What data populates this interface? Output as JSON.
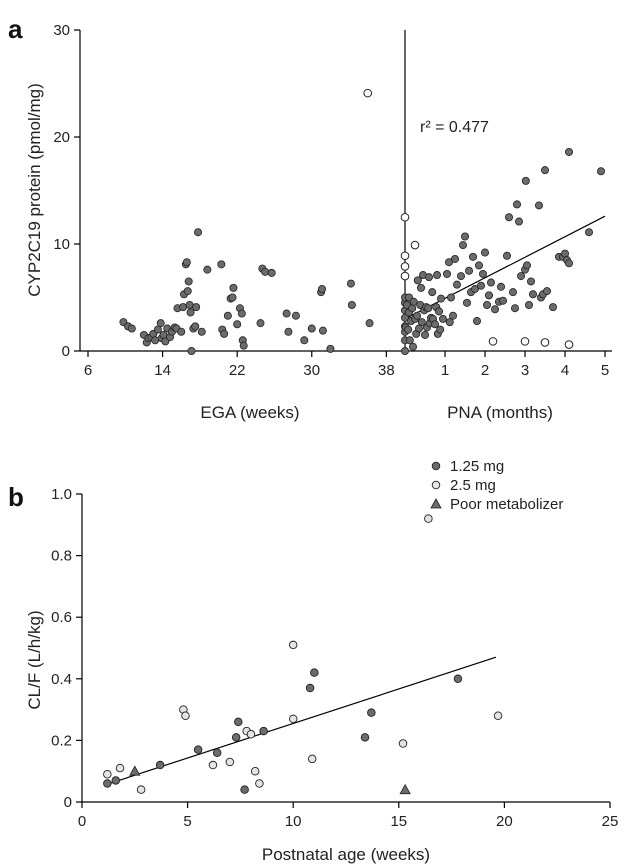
{
  "chart_data": [
    {
      "panel": "a",
      "type": "scatter",
      "ylabel": "CYP2C19 protein (pmol/mg)",
      "ylim": [
        0,
        30
      ],
      "yticks": [
        "0",
        "10",
        "20",
        "30"
      ],
      "annotation": "r² = 0.477",
      "segments": [
        {
          "name": "",
          "xlabel": "EGA (weeks)",
          "xlim": [
            6,
            40
          ],
          "xticks": [
            "6",
            "14",
            "22",
            "30",
            "38"
          ],
          "points": [
            [
              9.8,
              2.7
            ],
            [
              10.3,
              2.3
            ],
            [
              10.7,
              2.1
            ],
            [
              12.0,
              1.5
            ],
            [
              12.3,
              0.8
            ],
            [
              12.5,
              1.2
            ],
            [
              12.8,
              1.3
            ],
            [
              13.0,
              1.6
            ],
            [
              13.2,
              1.0
            ],
            [
              13.5,
              2.0
            ],
            [
              13.8,
              2.6
            ],
            [
              13.9,
              1.2
            ],
            [
              14.1,
              1.5
            ],
            [
              14.3,
              0.9
            ],
            [
              14.5,
              2.1
            ],
            [
              14.8,
              1.3
            ],
            [
              15.0,
              1.8
            ],
            [
              15.3,
              2.2
            ],
            [
              15.5,
              2.1
            ],
            [
              15.6,
              4.0
            ],
            [
              16.0,
              1.8
            ],
            [
              16.2,
              4.1
            ],
            [
              16.3,
              5.3
            ],
            [
              16.5,
              8.1
            ],
            [
              16.6,
              8.3
            ],
            [
              16.7,
              5.6
            ],
            [
              16.8,
              6.5
            ],
            [
              16.9,
              4.3
            ],
            [
              17.0,
              3.6
            ],
            [
              17.1,
              0.0
            ],
            [
              17.3,
              2.1
            ],
            [
              17.5,
              2.3
            ],
            [
              17.6,
              4.1
            ],
            [
              17.8,
              11.1
            ],
            [
              18.2,
              1.8
            ],
            [
              18.8,
              7.6
            ],
            [
              20.3,
              8.1
            ],
            [
              20.4,
              2.0
            ],
            [
              20.6,
              1.6
            ],
            [
              21.0,
              3.3
            ],
            [
              21.3,
              4.9
            ],
            [
              21.5,
              5.0
            ],
            [
              21.6,
              5.9
            ],
            [
              22.0,
              2.5
            ],
            [
              22.3,
              4.0
            ],
            [
              22.5,
              3.5
            ],
            [
              22.6,
              1.0
            ],
            [
              22.7,
              0.5
            ],
            [
              24.5,
              2.6
            ],
            [
              24.7,
              7.7
            ],
            [
              25.0,
              7.4
            ],
            [
              25.7,
              7.3
            ],
            [
              27.3,
              3.5
            ],
            [
              27.5,
              1.8
            ],
            [
              28.3,
              3.3
            ],
            [
              29.2,
              1.0
            ],
            [
              30.0,
              2.1
            ],
            [
              31.0,
              5.5
            ],
            [
              31.1,
              5.8
            ],
            [
              31.2,
              1.9
            ],
            [
              32.0,
              0.2
            ],
            [
              34.2,
              6.3
            ],
            [
              34.3,
              4.3
            ],
            [
              36.2,
              2.6
            ]
          ],
          "open_points": [
            [
              36.0,
              24.1
            ]
          ]
        },
        {
          "name": "",
          "xlabel": "PNA (months)",
          "xlim": [
            0,
            5
          ],
          "xticks": [
            "1",
            "2",
            "3",
            "4",
            "5"
          ],
          "points": [
            [
              0.0,
              0.0
            ],
            [
              0.0,
              1.0
            ],
            [
              0.0,
              1.8
            ],
            [
              0.0,
              2.3
            ],
            [
              0.0,
              3.1
            ],
            [
              0.0,
              3.8
            ],
            [
              0.0,
              4.5
            ],
            [
              0.0,
              5.0
            ],
            [
              0.02,
              2.2
            ],
            [
              0.05,
              4.3
            ],
            [
              0.08,
              2.0
            ],
            [
              0.1,
              3.6
            ],
            [
              0.1,
              5.0
            ],
            [
              0.12,
              1.0
            ],
            [
              0.15,
              2.8
            ],
            [
              0.18,
              4.0
            ],
            [
              0.2,
              0.4
            ],
            [
              0.22,
              4.6
            ],
            [
              0.25,
              3.0
            ],
            [
              0.28,
              1.6
            ],
            [
              0.3,
              3.3
            ],
            [
              0.32,
              6.6
            ],
            [
              0.35,
              2.1
            ],
            [
              0.38,
              4.3
            ],
            [
              0.4,
              5.9
            ],
            [
              0.42,
              2.7
            ],
            [
              0.45,
              7.1
            ],
            [
              0.48,
              3.8
            ],
            [
              0.5,
              1.5
            ],
            [
              0.53,
              4.1
            ],
            [
              0.55,
              2.2
            ],
            [
              0.58,
              4.0
            ],
            [
              0.6,
              6.9
            ],
            [
              0.62,
              2.6
            ],
            [
              0.65,
              3.1
            ],
            [
              0.68,
              5.5
            ],
            [
              0.7,
              3.0
            ],
            [
              0.75,
              2.5
            ],
            [
              0.78,
              4.1
            ],
            [
              0.8,
              7.1
            ],
            [
              0.82,
              1.6
            ],
            [
              0.85,
              3.7
            ],
            [
              0.88,
              2.0
            ],
            [
              0.9,
              4.9
            ],
            [
              0.95,
              3.0
            ],
            [
              1.05,
              7.2
            ],
            [
              1.1,
              8.3
            ],
            [
              1.12,
              2.7
            ],
            [
              1.15,
              5.0
            ],
            [
              1.2,
              3.3
            ],
            [
              1.25,
              8.6
            ],
            [
              1.3,
              6.2
            ],
            [
              1.4,
              7.0
            ],
            [
              1.45,
              9.9
            ],
            [
              1.5,
              10.7
            ],
            [
              1.55,
              4.5
            ],
            [
              1.6,
              7.5
            ],
            [
              1.65,
              5.5
            ],
            [
              1.7,
              8.8
            ],
            [
              1.75,
              5.8
            ],
            [
              1.8,
              2.8
            ],
            [
              1.85,
              8.0
            ],
            [
              1.9,
              6.1
            ],
            [
              1.95,
              7.2
            ],
            [
              2.0,
              9.2
            ],
            [
              2.05,
              4.3
            ],
            [
              2.1,
              5.2
            ],
            [
              2.15,
              6.4
            ],
            [
              2.25,
              3.9
            ],
            [
              2.35,
              4.6
            ],
            [
              2.4,
              6.0
            ],
            [
              2.45,
              4.7
            ],
            [
              2.55,
              8.9
            ],
            [
              2.6,
              12.5
            ],
            [
              2.7,
              5.5
            ],
            [
              2.75,
              4.0
            ],
            [
              2.8,
              13.7
            ],
            [
              2.85,
              12.1
            ],
            [
              2.9,
              7.0
            ],
            [
              3.0,
              7.6
            ],
            [
              3.02,
              15.9
            ],
            [
              3.05,
              8.0
            ],
            [
              3.1,
              4.3
            ],
            [
              3.15,
              6.5
            ],
            [
              3.2,
              5.3
            ],
            [
              3.35,
              13.6
            ],
            [
              3.4,
              5.0
            ],
            [
              3.45,
              5.3
            ],
            [
              3.5,
              16.9
            ],
            [
              3.55,
              5.6
            ],
            [
              3.7,
              4.1
            ],
            [
              3.85,
              8.8
            ],
            [
              3.95,
              8.8
            ],
            [
              4.0,
              9.1
            ],
            [
              4.05,
              8.5
            ],
            [
              4.1,
              8.2
            ],
            [
              4.1,
              18.6
            ],
            [
              4.6,
              11.1
            ],
            [
              4.9,
              16.8
            ]
          ],
          "open_points": [
            [
              0.0,
              7.0
            ],
            [
              0.0,
              7.9
            ],
            [
              0.0,
              8.9
            ],
            [
              0.0,
              12.5
            ],
            [
              0.25,
              9.9
            ],
            [
              2.2,
              0.9
            ],
            [
              3.0,
              0.9
            ],
            [
              3.5,
              0.8
            ],
            [
              4.1,
              0.6
            ]
          ]
        }
      ],
      "trend_line": {
        "x": [
          0,
          5
        ],
        "y": [
          3.0,
          12.6
        ]
      }
    },
    {
      "panel": "b",
      "type": "scatter",
      "xlabel": "Postnatal age (weeks)",
      "ylabel": "CL/F (L/h/kg)",
      "xlim": [
        0,
        25
      ],
      "ylim": [
        0,
        1.0
      ],
      "xticks": [
        "0",
        "5",
        "10",
        "15",
        "20",
        "25"
      ],
      "yticks": [
        "0",
        "0.2",
        "0.4",
        "0.6",
        "0.8",
        "1.0"
      ],
      "legend_position": "top-right",
      "series": [
        {
          "name": "1.25 mg",
          "marker": "filled-circle",
          "color": "#6b6b6b",
          "points": [
            [
              1.2,
              0.06
            ],
            [
              1.6,
              0.07
            ],
            [
              3.7,
              0.12
            ],
            [
              5.5,
              0.17
            ],
            [
              6.4,
              0.16
            ],
            [
              7.3,
              0.21
            ],
            [
              7.4,
              0.26
            ],
            [
              7.7,
              0.04
            ],
            [
              8.6,
              0.23
            ],
            [
              10.8,
              0.37
            ],
            [
              11.0,
              0.42
            ],
            [
              13.4,
              0.21
            ],
            [
              13.7,
              0.29
            ],
            [
              17.8,
              0.4
            ]
          ]
        },
        {
          "name": "2.5 mg",
          "marker": "open-circle",
          "color": "#e4e4e4",
          "points": [
            [
              1.2,
              0.09
            ],
            [
              1.8,
              0.11
            ],
            [
              2.8,
              0.04
            ],
            [
              4.8,
              0.3
            ],
            [
              4.9,
              0.28
            ],
            [
              6.2,
              0.12
            ],
            [
              7.0,
              0.13
            ],
            [
              7.8,
              0.23
            ],
            [
              8.0,
              0.22
            ],
            [
              8.2,
              0.1
            ],
            [
              8.4,
              0.06
            ],
            [
              10.0,
              0.51
            ],
            [
              10.0,
              0.27
            ],
            [
              10.9,
              0.14
            ],
            [
              15.2,
              0.19
            ],
            [
              16.4,
              0.92
            ],
            [
              19.7,
              0.28
            ]
          ]
        },
        {
          "name": "Poor metabolizer",
          "marker": "triangle",
          "color": "#6b6b6b",
          "points": [
            [
              2.5,
              0.1
            ],
            [
              15.3,
              0.04
            ]
          ]
        }
      ],
      "trend_line": {
        "x": [
          1.3,
          19.6
        ],
        "y": [
          0.06,
          0.47
        ]
      }
    }
  ]
}
